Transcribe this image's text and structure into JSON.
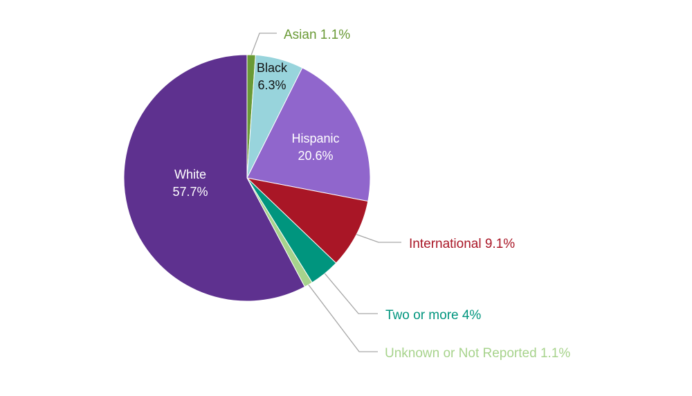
{
  "chart_data": {
    "type": "pie",
    "slices": [
      {
        "label": "Asian",
        "value": 1.1,
        "text_inside": [],
        "text_outside": "Asian 1.1%",
        "color": "#6a9a36",
        "label_color": "#6a9a36"
      },
      {
        "label": "Black",
        "value": 6.3,
        "text_inside": [
          "Black",
          "6.3%"
        ],
        "text_outside": "",
        "color": "#98d4dc",
        "label_color": "#111111"
      },
      {
        "label": "Hispanic",
        "value": 20.6,
        "text_inside": [
          "Hispanic",
          "20.6%"
        ],
        "text_outside": "",
        "color": "#9066cc",
        "label_color": "#ffffff"
      },
      {
        "label": "International",
        "value": 9.1,
        "text_inside": [],
        "text_outside": "International 9.1%",
        "color": "#a91626",
        "label_color": "#a91626"
      },
      {
        "label": "Two or more",
        "value": 4,
        "text_inside": [],
        "text_outside": "Two or more 4%",
        "color": "#00957e",
        "label_color": "#00957e"
      },
      {
        "label": "Unknown or Not Reported",
        "value": 1.1,
        "text_inside": [],
        "text_outside": "Unknown or Not Reported 1.1%",
        "color": "#a7d38c",
        "label_color": "#a7d38c"
      },
      {
        "label": "White",
        "value": 57.7,
        "text_inside": [
          "White",
          "57.7%"
        ],
        "text_outside": "",
        "color": "#5e318f",
        "label_color": "#ffffff"
      }
    ]
  }
}
